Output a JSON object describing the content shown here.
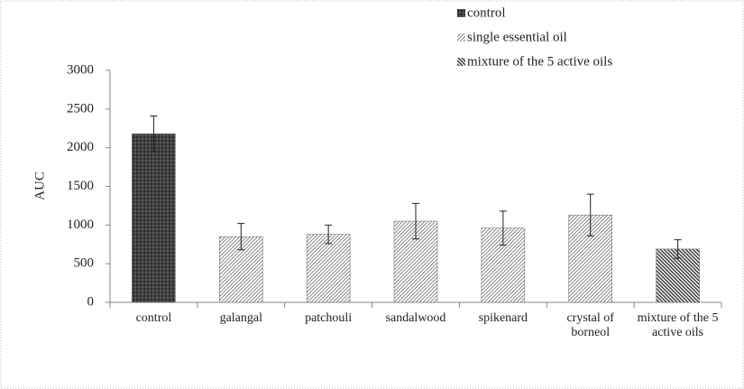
{
  "chart_data": {
    "type": "bar",
    "y_label": "AUC",
    "categories": [
      "control",
      "galangal",
      "patchouli",
      "sandalwood",
      "spikenard",
      "crystal of borneol",
      "mixture of the 5 active oils"
    ],
    "series": [
      {
        "name": "control",
        "color": "#2a2a2a",
        "values": [
          2180,
          null,
          null,
          null,
          null,
          null,
          null
        ],
        "errors": [
          230,
          null,
          null,
          null,
          null,
          null,
          null
        ]
      },
      {
        "name": "single essential oil",
        "color": "#8a8a8a",
        "values": [
          null,
          850,
          880,
          1050,
          960,
          1130,
          null
        ],
        "errors": [
          null,
          170,
          120,
          230,
          220,
          270,
          null
        ]
      },
      {
        "name": "mixture of the 5 active oils",
        "color": "#3a3a3a",
        "values": [
          null,
          null,
          null,
          null,
          null,
          null,
          690
        ],
        "errors": [
          null,
          null,
          null,
          null,
          null,
          null,
          120
        ]
      }
    ],
    "ylim": [
      0,
      3000
    ],
    "yticks": [
      0,
      500,
      1000,
      1500,
      2000,
      2500,
      3000
    ],
    "grid": false
  }
}
